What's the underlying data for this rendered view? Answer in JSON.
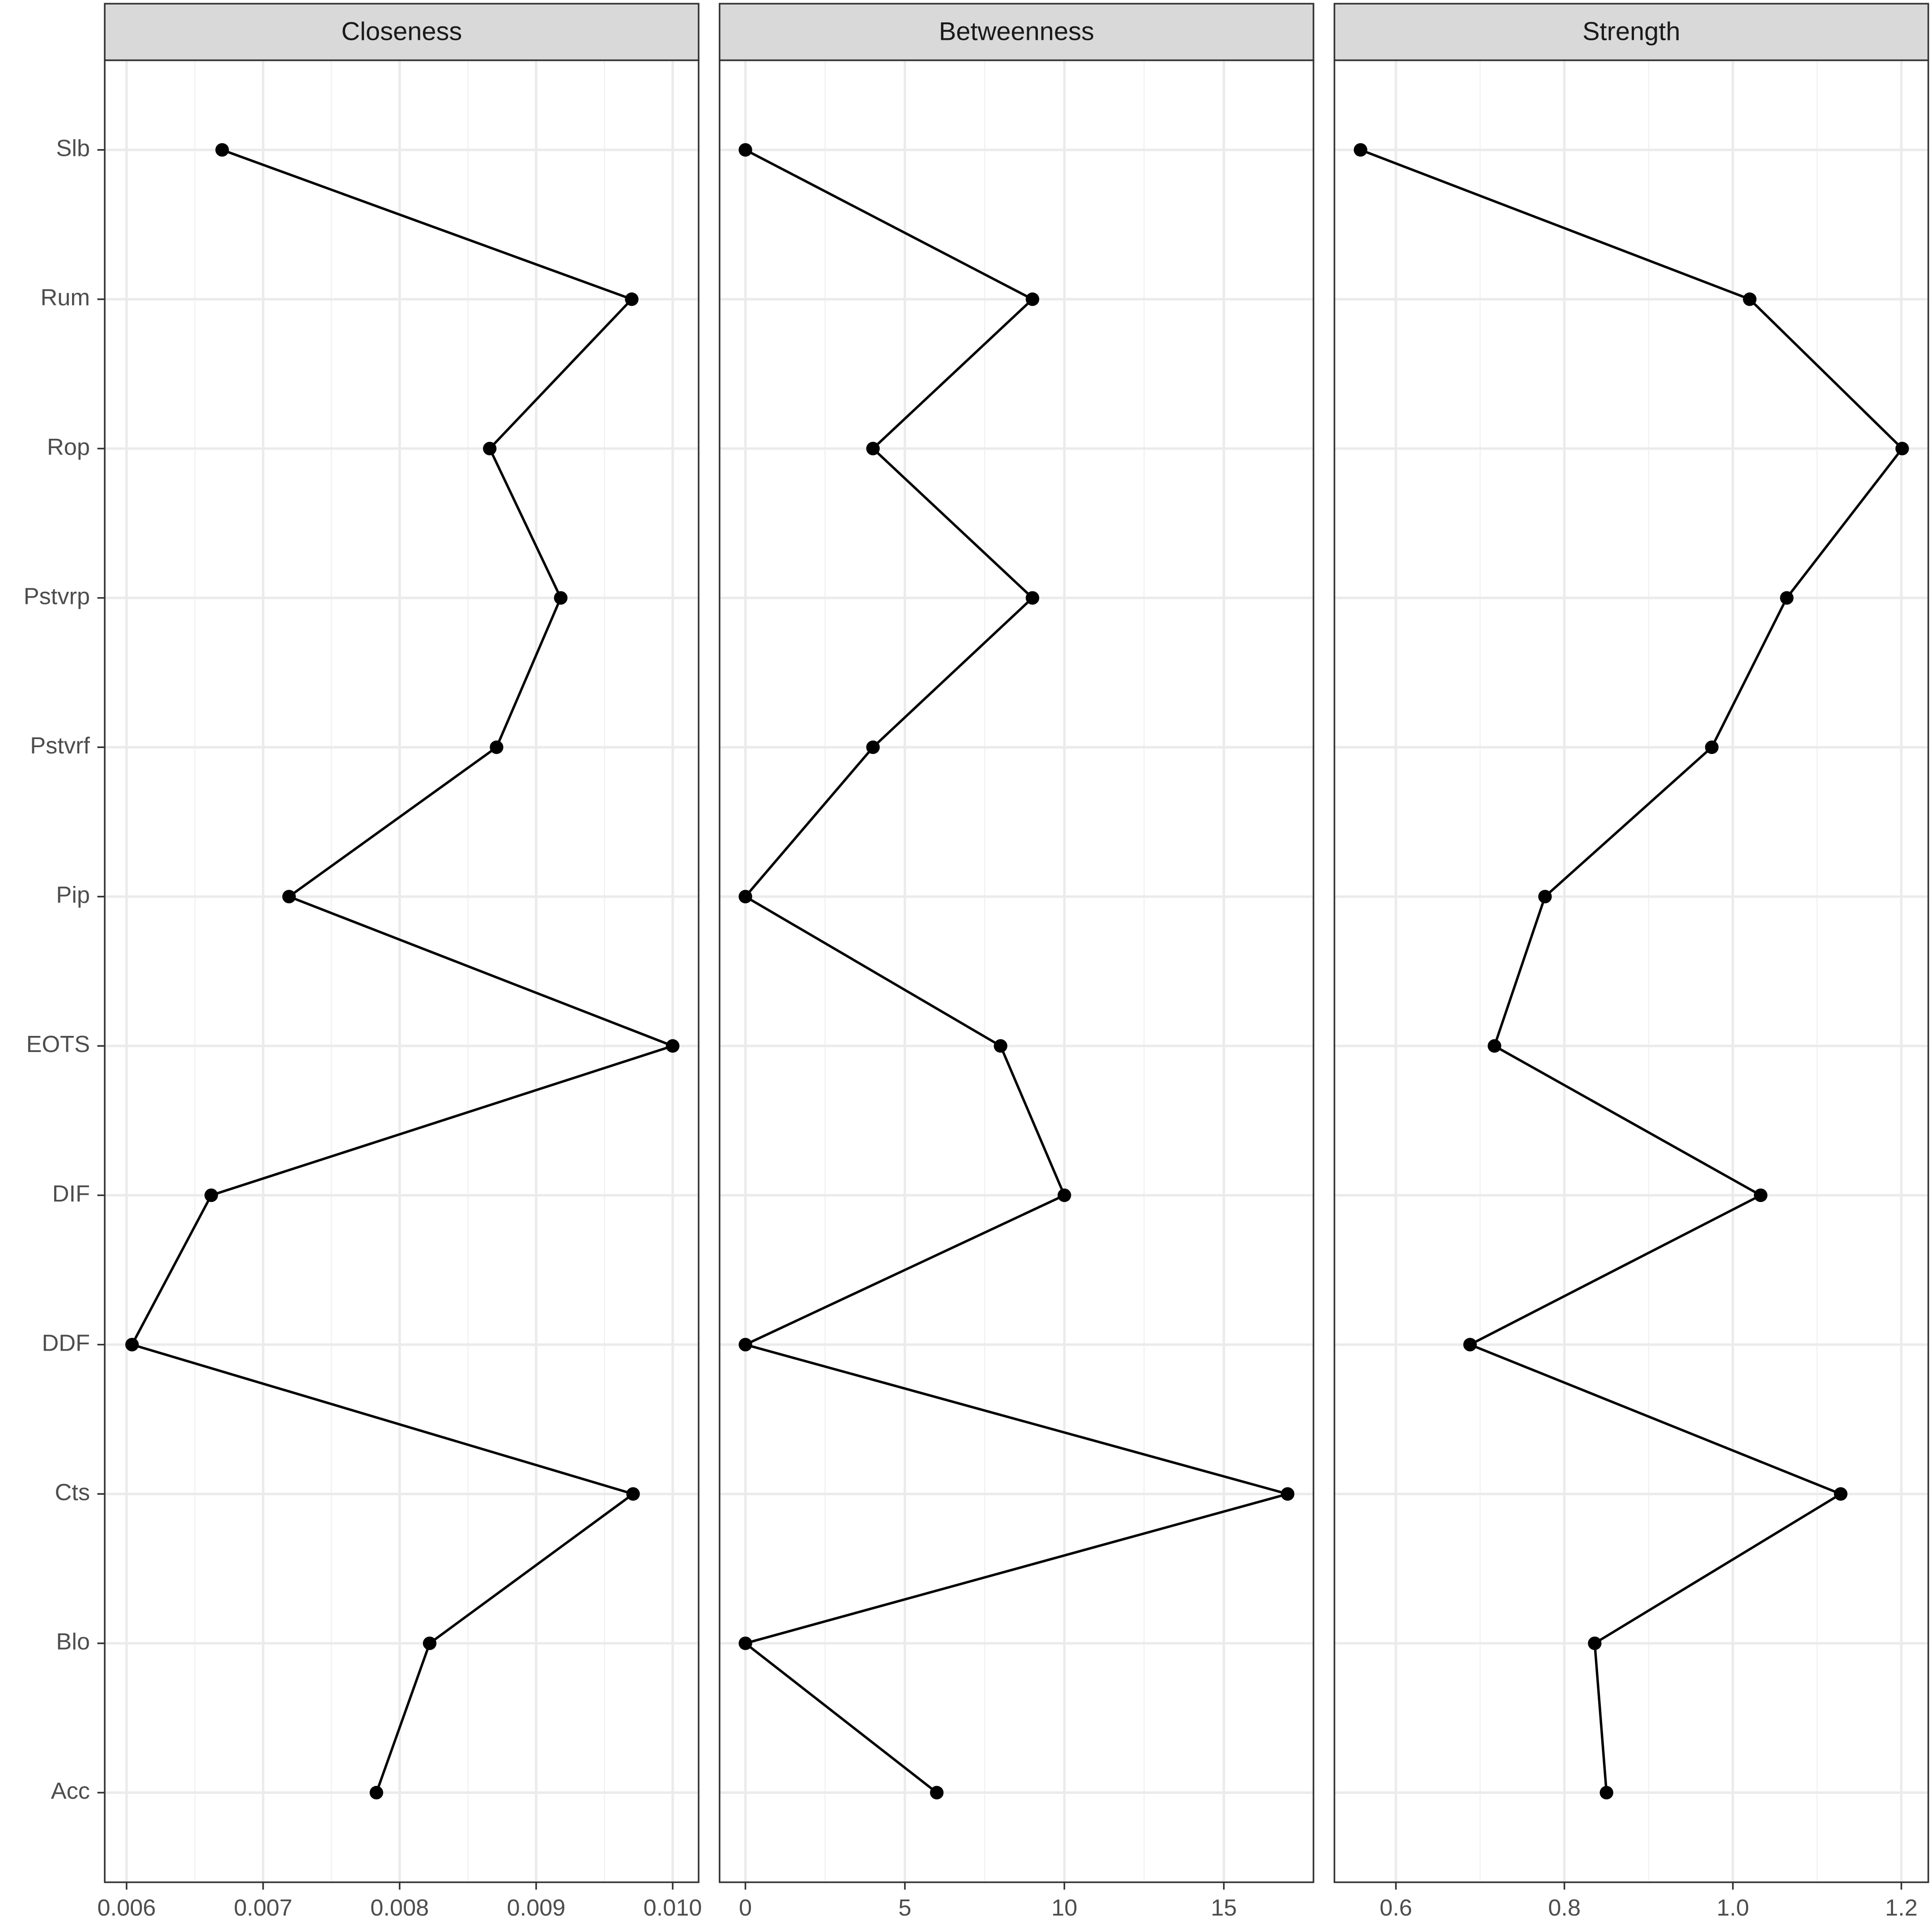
{
  "chart_data": [
    {
      "type": "line",
      "title": "Closeness",
      "categories": [
        "Slb",
        "Rum",
        "Rop",
        "Pstvrp",
        "Pstvrf",
        "Pip",
        "EOTS",
        "DIF",
        "DDF",
        "Cts",
        "Blo",
        "Acc"
      ],
      "values": [
        0.0067,
        0.0097,
        0.00866,
        0.00918,
        0.00871,
        0.00719,
        0.01,
        0.00662,
        0.00604,
        0.00971,
        0.00822,
        0.00783
      ],
      "xlim": [
        0.00584,
        0.01019
      ],
      "xticks": [
        0.006,
        0.007,
        0.008,
        0.009,
        {
          "value": 0.01,
          "label": "0.010"
        }
      ],
      "color": "#000000",
      "grid": true
    },
    {
      "type": "line",
      "title": "Betweenness",
      "values": [
        0,
        9,
        4,
        9,
        4,
        0,
        8,
        10,
        0,
        17,
        0,
        6
      ],
      "xlim": [
        -0.81,
        17.81
      ],
      "xticks": [
        0,
        5,
        10,
        15
      ],
      "color": "#000000",
      "grid": true
    },
    {
      "type": "line",
      "title": "Strength",
      "values": [
        0.558,
        1.02,
        1.201,
        1.064,
        0.975,
        0.777,
        0.717,
        1.033,
        0.688,
        1.128,
        0.836,
        0.85
      ],
      "xlim": [
        0.527,
        1.232
      ],
      "xticks": [
        0.6,
        0.8,
        {
          "value": 1,
          "label": "1.0"
        },
        1.2
      ],
      "color": "#000000",
      "grid": true
    }
  ]
}
